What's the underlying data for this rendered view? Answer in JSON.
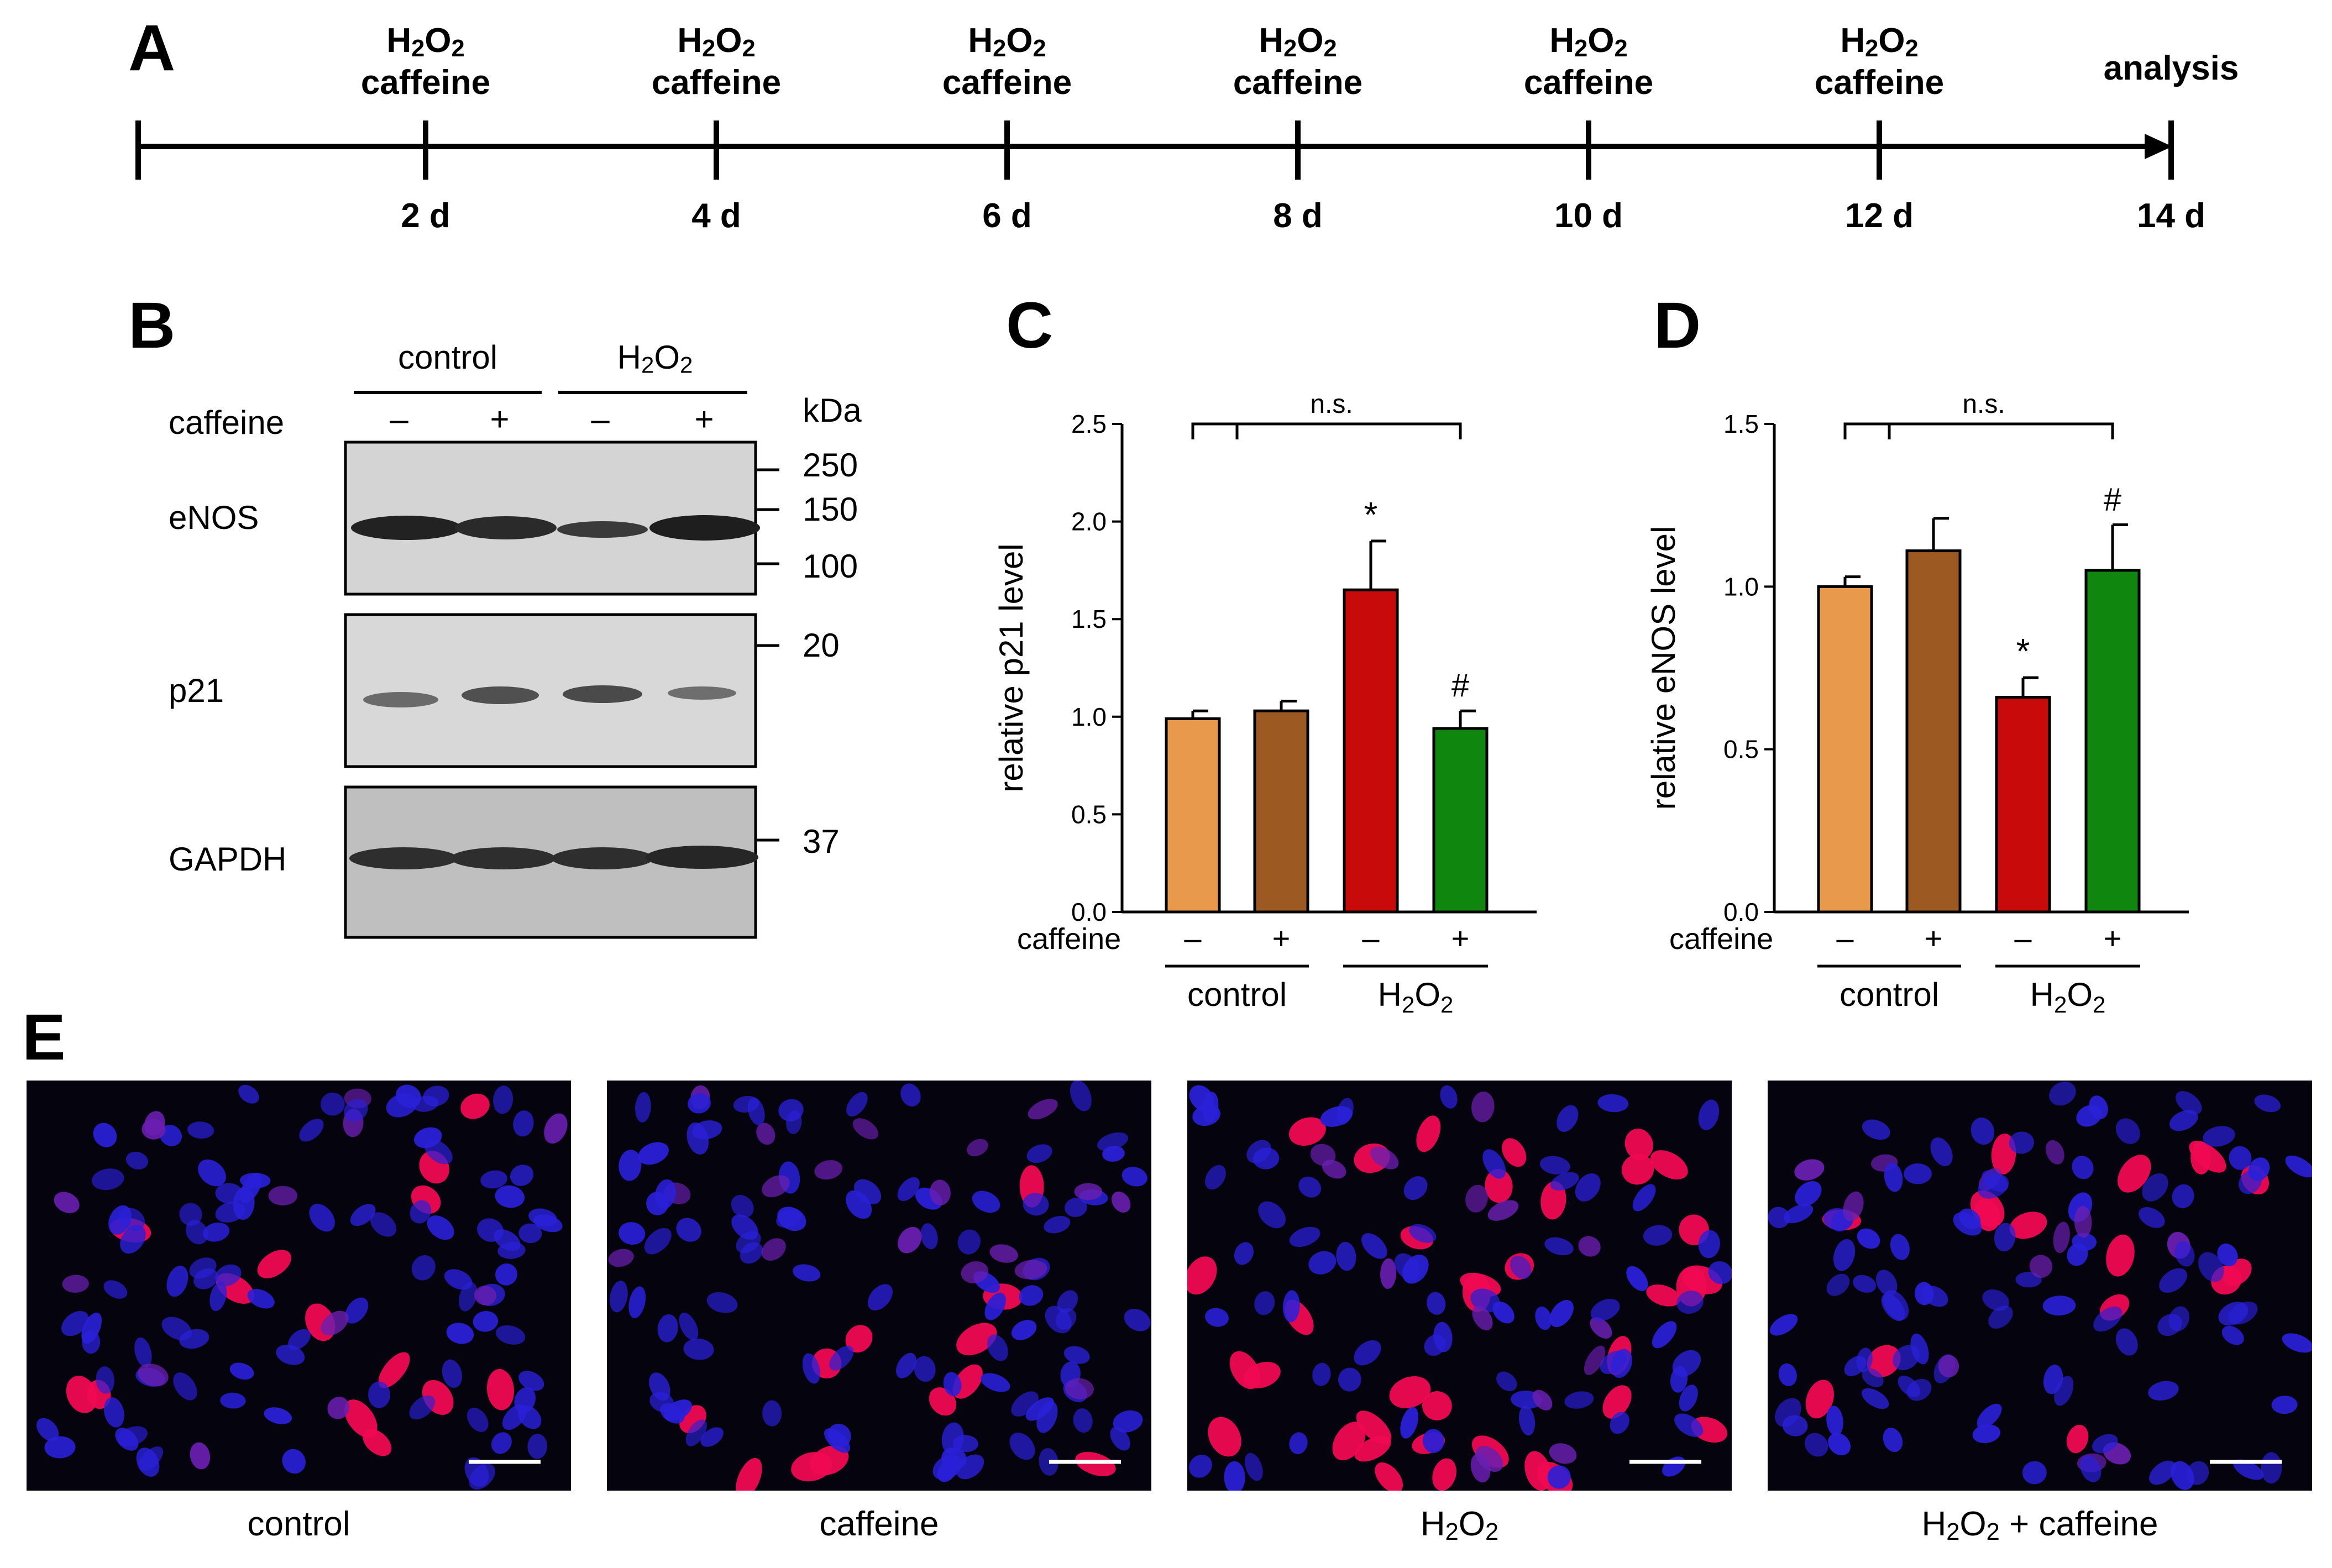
{
  "panels": {
    "A": "A",
    "B": "B",
    "C": "C",
    "D": "D",
    "E": "E"
  },
  "timeline": {
    "treatment_label_line1": "H2O2",
    "treatment_label_line2": "caffeine",
    "analysis_label": "analysis",
    "days": [
      "2 d",
      "4 d",
      "6 d",
      "8 d",
      "10 d",
      "12 d",
      "14 d"
    ]
  },
  "western_blot": {
    "groups": [
      "control",
      "H2O2"
    ],
    "caffeine_label": "caffeine",
    "caffeine_signs": [
      "–",
      "+",
      "–",
      "+"
    ],
    "kda_label": "kDa",
    "proteins": [
      "eNOS",
      "p21",
      "GAPDH"
    ],
    "markers": [
      "250",
      "150",
      "100",
      "20",
      "37"
    ]
  },
  "chart_data": [
    {
      "type": "bar",
      "panel": "C",
      "ylabel": "relative p21 level",
      "ylim": [
        0,
        2.5
      ],
      "yticks": [
        "0.0",
        "0.5",
        "1.0",
        "1.5",
        "2.0",
        "2.5"
      ],
      "categories": [
        "control –",
        "control +",
        "H2O2 –",
        "H2O2 +"
      ],
      "caffeine_label": "caffeine",
      "caffeine_signs": [
        "–",
        "+",
        "–",
        "+"
      ],
      "groups": [
        "control",
        "H2O2"
      ],
      "values": [
        0.99,
        1.03,
        1.65,
        0.94
      ],
      "errors": [
        0.04,
        0.05,
        0.25,
        0.09
      ],
      "annotations": [
        "",
        "",
        "*",
        "#"
      ],
      "significance_label": "n.s.",
      "colors": [
        "#e8994b",
        "#9c5a22",
        "#c80a0a",
        "#0f870f"
      ]
    },
    {
      "type": "bar",
      "panel": "D",
      "ylabel": "relative eNOS level",
      "ylim": [
        0,
        1.5
      ],
      "yticks": [
        "0.0",
        "0.5",
        "1.0",
        "1.5"
      ],
      "categories": [
        "control –",
        "control +",
        "H2O2 –",
        "H2O2 +"
      ],
      "caffeine_label": "caffeine",
      "caffeine_signs": [
        "–",
        "+",
        "–",
        "+"
      ],
      "groups": [
        "control",
        "H2O2"
      ],
      "values": [
        1.0,
        1.11,
        0.66,
        1.05
      ],
      "errors": [
        0.03,
        0.1,
        0.06,
        0.14
      ],
      "annotations": [
        "",
        "",
        "*",
        "#"
      ],
      "significance_label": "n.s.",
      "colors": [
        "#e8994b",
        "#9c5a22",
        "#c80a0a",
        "#0f870f"
      ]
    }
  ],
  "microscopy": {
    "captions": [
      "control",
      "caffeine",
      "H2O2",
      "H2O2 + caffeine"
    ],
    "colors": {
      "background": "#05030e",
      "dapi": "#2a20d8",
      "stain": "#f00a52"
    }
  }
}
